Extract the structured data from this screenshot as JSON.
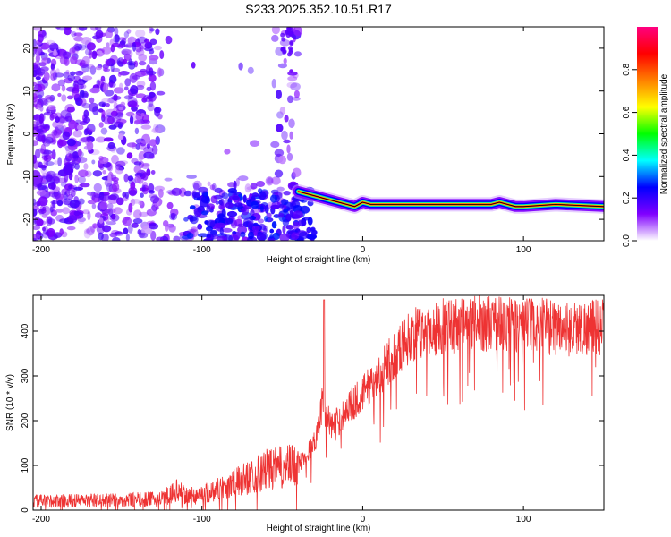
{
  "title": "S233.2025.352.10.51.R17",
  "chart_data": [
    {
      "type": "heatmap",
      "xlabel": "Height of straight line (km)",
      "ylabel": "Frequency (Hz)",
      "xlim": [
        -205,
        150
      ],
      "ylim": [
        -25,
        25
      ],
      "xticks": [
        -200,
        -100,
        0,
        100
      ],
      "yticks": [
        -20,
        -10,
        0,
        10,
        20
      ],
      "colorbar": {
        "label": "Normalized spectral amplitude",
        "range": [
          0,
          1
        ],
        "ticks": [
          "0.0",
          "0.2",
          "0.4",
          "0.6",
          "0.8"
        ],
        "colors": [
          "#ffffff",
          "#8000ff",
          "#0000ff",
          "#00ffff",
          "#00ff00",
          "#ffff00",
          "#ff8000",
          "#ff0000",
          "#ff0080"
        ]
      },
      "signal_trace": {
        "x": [
          -40,
          -35,
          -30,
          -25,
          -20,
          -15,
          -10,
          -5,
          0,
          5,
          10,
          20,
          40,
          60,
          80,
          85,
          90,
          95,
          100,
          120,
          150
        ],
        "y": [
          -13.5,
          -14,
          -14.5,
          -15,
          -15.5,
          -16,
          -16.5,
          -17,
          -16,
          -16.5,
          -16.5,
          -16.5,
          -16.5,
          -16.5,
          -16.5,
          -16,
          -16.5,
          -17,
          -17,
          -16.5,
          -17
        ]
      },
      "noise_region": {
        "x_from": -205,
        "x_to": -40
      }
    },
    {
      "type": "line",
      "xlabel": "Height of straight line (km)",
      "ylabel": "SNR (10 * v/v)",
      "xlim": [
        -205,
        150
      ],
      "ylim": [
        0,
        480
      ],
      "xticks": [
        -200,
        -100,
        0,
        100
      ],
      "yticks": [
        0,
        100,
        200,
        300,
        400
      ],
      "color": "#ee3333",
      "envelope": {
        "x": [
          -205,
          -150,
          -125,
          -115,
          -110,
          -100,
          -80,
          -60,
          -40,
          -30,
          -25,
          -20,
          -15,
          -10,
          0,
          10,
          20,
          30,
          50,
          70,
          100,
          130,
          150
        ],
        "y": [
          20,
          22,
          25,
          45,
          30,
          35,
          60,
          90,
          100,
          150,
          240,
          190,
          200,
          225,
          260,
          300,
          350,
          390,
          410,
          420,
          415,
          405,
          410
        ]
      },
      "spike": {
        "x": -24,
        "y": 470
      }
    }
  ]
}
